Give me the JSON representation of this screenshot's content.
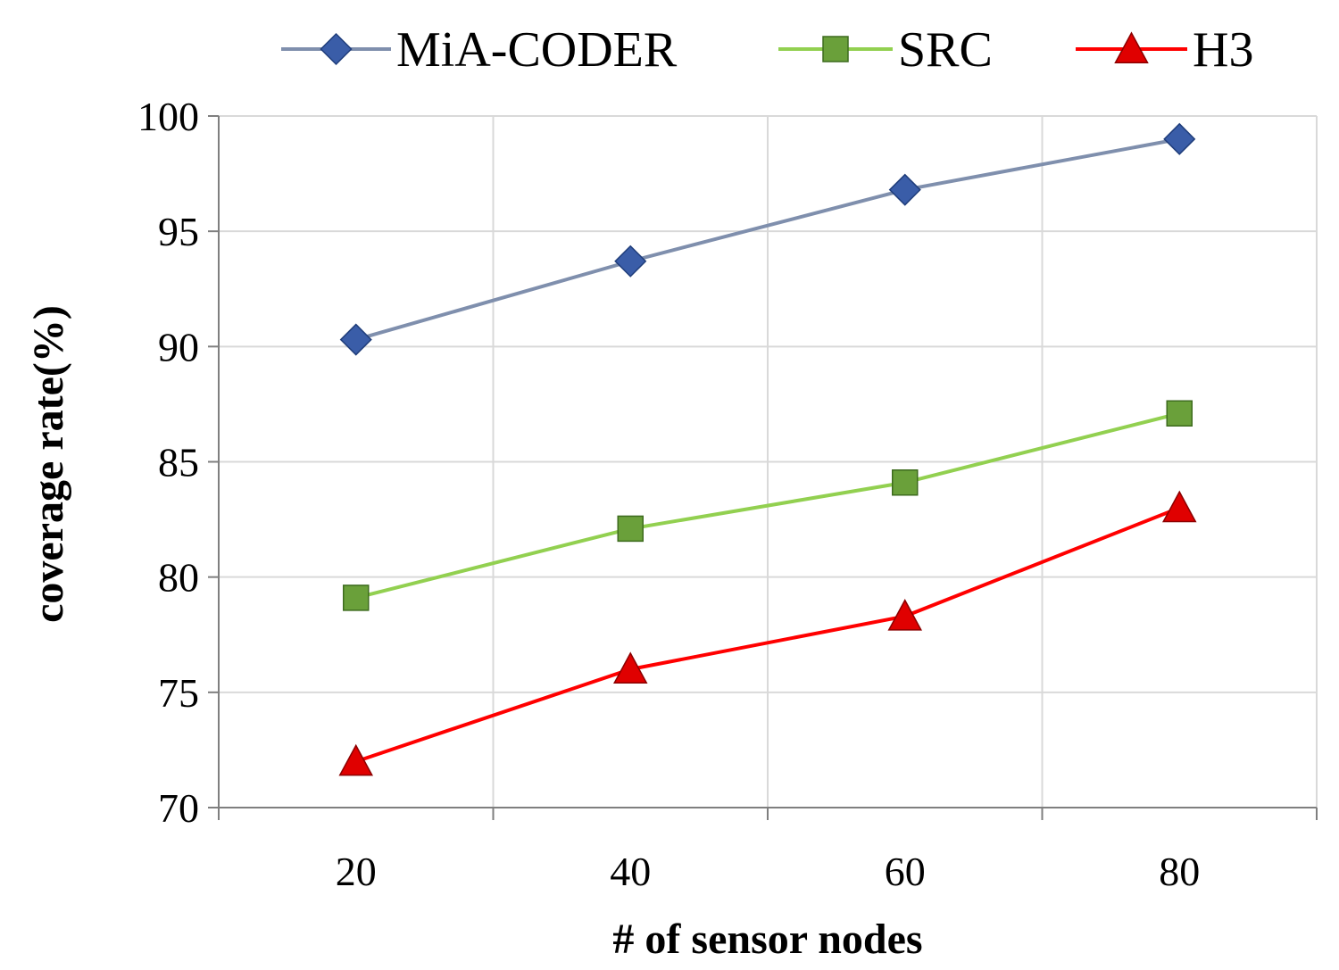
{
  "chart_data": {
    "type": "line",
    "title": "",
    "xlabel": "# of sensor nodes",
    "ylabel": "coverage rate(%)",
    "categories": [
      "20",
      "40",
      "60",
      "80"
    ],
    "x_minor_gridlines": true,
    "ylim": [
      70,
      100
    ],
    "yticks": [
      "70",
      "75",
      "80",
      "85",
      "90",
      "95",
      "100"
    ],
    "grid": true,
    "legend_position": "top",
    "series": [
      {
        "name": "MiA-CODER",
        "values": [
          90.3,
          93.7,
          96.8,
          99.0
        ],
        "color": "#7f8fad",
        "marker": "diamond",
        "marker_color": "#3a5da8"
      },
      {
        "name": "SRC",
        "values": [
          79.1,
          82.1,
          84.1,
          87.1
        ],
        "color": "#92d050",
        "marker": "square",
        "marker_color": "#6aa03a"
      },
      {
        "name": "H3",
        "values": [
          72.0,
          76.0,
          78.3,
          83.0
        ],
        "color": "#ff0000",
        "marker": "triangle",
        "marker_color": "#e00000"
      }
    ]
  }
}
